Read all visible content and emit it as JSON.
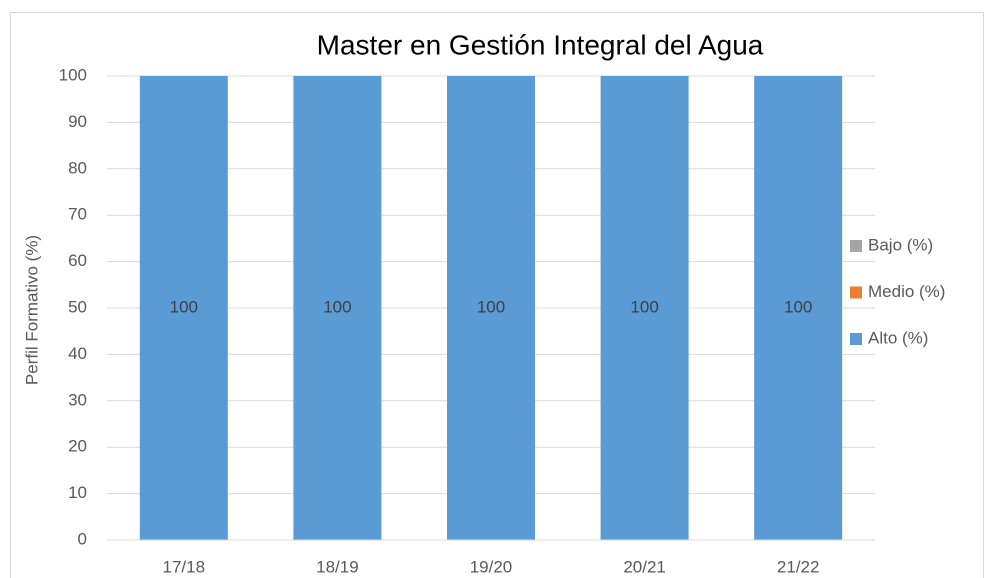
{
  "chart_data": {
    "type": "stacked_bar",
    "title": "Master en Gestión Integral del Agua",
    "y_label": "Perfil Formativo (%)",
    "categories": [
      "17/18",
      "18/19",
      "19/20",
      "20/21",
      "21/22"
    ],
    "series": [
      {
        "name": "Alto (%)",
        "color": "#5b9bd5",
        "values": [
          100,
          100,
          100,
          100,
          100
        ]
      },
      {
        "name": "Medio (%)",
        "color": "#ed7d31",
        "values": [
          0,
          0,
          0,
          0,
          0
        ]
      },
      {
        "name": "Bajo (%)",
        "color": "#a5a5a5",
        "values": [
          0,
          0,
          0,
          0,
          0
        ]
      }
    ],
    "ylim": [
      0,
      100
    ],
    "yticks": [
      0,
      10,
      20,
      30,
      40,
      50,
      60,
      70,
      80,
      90,
      100
    ],
    "grid": true,
    "legend": "right"
  }
}
